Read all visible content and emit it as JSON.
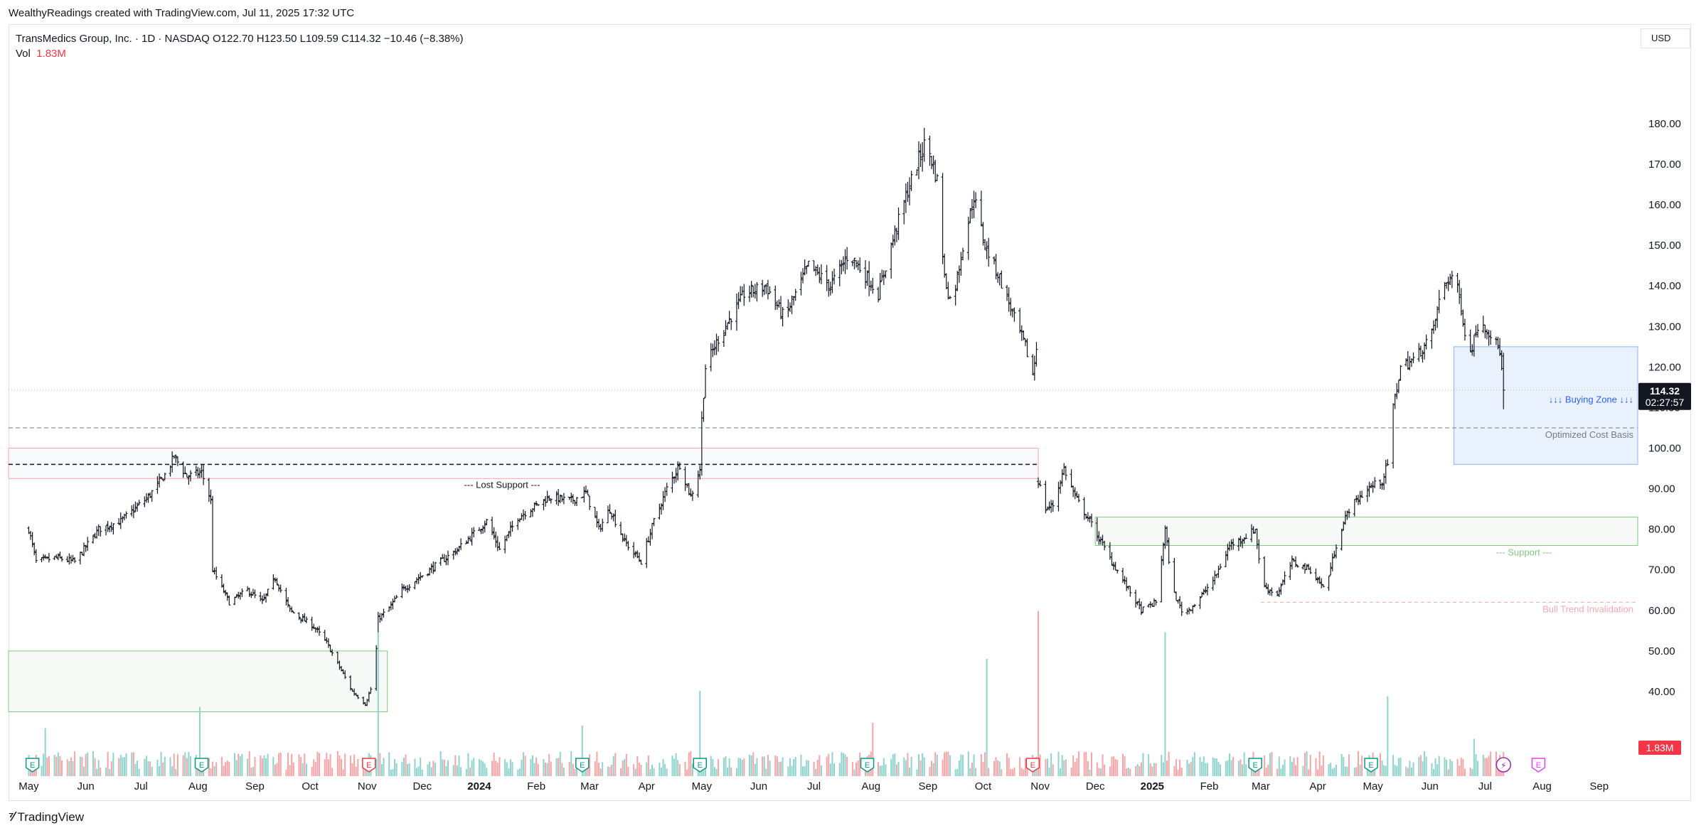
{
  "header": {
    "credit": "WealthyReadings created with TradingView.com, Jul 11, 2025 17:32 UTC",
    "legend_line1": "TransMedics Group, Inc. · 1D · NASDAQ  O122.70  H123.50  L109.59  C114.32  −10.46 (−8.38%)",
    "vol_label": "Vol",
    "vol_value": "1.83M",
    "currency": "USD"
  },
  "footer": {
    "brand": "TradingView"
  },
  "colors": {
    "up_volume": "#26a69a",
    "down_volume": "#ef5350",
    "buying_zone": "#2962ff",
    "support": "#4caf50",
    "invalidation": "#f23645"
  },
  "chart_data": {
    "type": "ohlc",
    "symbol": "TransMedics Group, Inc.",
    "interval": "1D",
    "exchange": "NASDAQ",
    "last": {
      "open": 122.7,
      "high": 123.5,
      "low": 109.59,
      "close": 114.32,
      "change": -10.46,
      "change_pct": -8.38
    },
    "ylim": [
      30,
      187
    ],
    "y_ticks": [
      40,
      50,
      60,
      70,
      80,
      90,
      100,
      110,
      120,
      130,
      140,
      150,
      160,
      170,
      180
    ],
    "y_tick_labels": [
      "40.00",
      "50.00",
      "60.00",
      "70.00",
      "80.00",
      "90.00",
      "100.00",
      "110.00",
      "120.00",
      "130.00",
      "140.00",
      "150.00",
      "160.00",
      "170.00",
      "180.00"
    ],
    "x_ticks": [
      {
        "label": "May",
        "date": "2023-05-01"
      },
      {
        "label": "Jun",
        "date": "2023-06-01"
      },
      {
        "label": "Jul",
        "date": "2023-07-01"
      },
      {
        "label": "Aug",
        "date": "2023-08-01"
      },
      {
        "label": "Sep",
        "date": "2023-09-01"
      },
      {
        "label": "Oct",
        "date": "2023-10-01"
      },
      {
        "label": "Nov",
        "date": "2023-11-01"
      },
      {
        "label": "Dec",
        "date": "2023-12-01"
      },
      {
        "label": "2024",
        "date": "2024-01-01",
        "bold": true
      },
      {
        "label": "Feb",
        "date": "2024-02-01"
      },
      {
        "label": "Mar",
        "date": "2024-03-01"
      },
      {
        "label": "Apr",
        "date": "2024-04-01"
      },
      {
        "label": "May",
        "date": "2024-05-01"
      },
      {
        "label": "Jun",
        "date": "2024-06-01"
      },
      {
        "label": "Jul",
        "date": "2024-07-01"
      },
      {
        "label": "Aug",
        "date": "2024-08-01"
      },
      {
        "label": "Sep",
        "date": "2024-09-01"
      },
      {
        "label": "Oct",
        "date": "2024-10-01"
      },
      {
        "label": "Nov",
        "date": "2024-11-01"
      },
      {
        "label": "Dec",
        "date": "2024-12-01"
      },
      {
        "label": "2025",
        "date": "2025-01-01",
        "bold": true
      },
      {
        "label": "Feb",
        "date": "2025-02-01"
      },
      {
        "label": "Mar",
        "date": "2025-03-01"
      },
      {
        "label": "Apr",
        "date": "2025-04-01"
      },
      {
        "label": "May",
        "date": "2025-05-01"
      },
      {
        "label": "Jun",
        "date": "2025-06-01"
      },
      {
        "label": "Jul",
        "date": "2025-07-01"
      },
      {
        "label": "Aug",
        "date": "2025-08-01"
      },
      {
        "label": "Sep",
        "date": "2025-09-01"
      }
    ],
    "price_path": [
      [
        "2023-05-01",
        80
      ],
      [
        "2023-05-05",
        72
      ],
      [
        "2023-05-16",
        73
      ],
      [
        "2023-05-26",
        72
      ],
      [
        "2023-06-08",
        80
      ],
      [
        "2023-06-20",
        82
      ],
      [
        "2023-07-05",
        88
      ],
      [
        "2023-07-15",
        94
      ],
      [
        "2023-07-19",
        98
      ],
      [
        "2023-07-26",
        93
      ],
      [
        "2023-08-03",
        94
      ],
      [
        "2023-08-08",
        87
      ],
      [
        "2023-08-09",
        70
      ],
      [
        "2023-08-18",
        62
      ],
      [
        "2023-08-28",
        65
      ],
      [
        "2023-09-05",
        62
      ],
      [
        "2023-09-12",
        68
      ],
      [
        "2023-09-20",
        60
      ],
      [
        "2023-10-03",
        56
      ],
      [
        "2023-10-10",
        52
      ],
      [
        "2023-10-17",
        46
      ],
      [
        "2023-10-24",
        40
      ],
      [
        "2023-10-31",
        37
      ],
      [
        "2023-11-05",
        43
      ],
      [
        "2023-11-07",
        58
      ],
      [
        "2023-11-12",
        60
      ],
      [
        "2023-11-20",
        65
      ],
      [
        "2023-12-05",
        70
      ],
      [
        "2023-12-20",
        75
      ],
      [
        "2024-01-05",
        82
      ],
      [
        "2024-01-12",
        75
      ],
      [
        "2024-01-22",
        83
      ],
      [
        "2024-02-08",
        88
      ],
      [
        "2024-02-20",
        87
      ],
      [
        "2024-02-28",
        89
      ],
      [
        "2024-03-06",
        80
      ],
      [
        "2024-03-12",
        85
      ],
      [
        "2024-03-20",
        77
      ],
      [
        "2024-03-29",
        72
      ],
      [
        "2024-04-05",
        82
      ],
      [
        "2024-04-12",
        90
      ],
      [
        "2024-04-19",
        96
      ],
      [
        "2024-04-25",
        88
      ],
      [
        "2024-04-30",
        95
      ],
      [
        "2024-05-01",
        107
      ],
      [
        "2024-05-03",
        120
      ],
      [
        "2024-05-10",
        127
      ],
      [
        "2024-05-24",
        138
      ],
      [
        "2024-06-05",
        140
      ],
      [
        "2024-06-15",
        132
      ],
      [
        "2024-06-28",
        145
      ],
      [
        "2024-07-10",
        140
      ],
      [
        "2024-07-20",
        148
      ],
      [
        "2024-07-30",
        142
      ],
      [
        "2024-08-05",
        138
      ],
      [
        "2024-08-12",
        150
      ],
      [
        "2024-08-20",
        162
      ],
      [
        "2024-08-26",
        170
      ],
      [
        "2024-08-31",
        176
      ],
      [
        "2024-09-06",
        166
      ],
      [
        "2024-09-10",
        142
      ],
      [
        "2024-09-14",
        135
      ],
      [
        "2024-09-20",
        150
      ],
      [
        "2024-09-26",
        162
      ],
      [
        "2024-10-02",
        150
      ],
      [
        "2024-10-10",
        142
      ],
      [
        "2024-10-18",
        132
      ],
      [
        "2024-10-24",
        125
      ],
      [
        "2024-10-28",
        118
      ],
      [
        "2024-10-31",
        128
      ],
      [
        "2024-10-31",
        92
      ],
      [
        "2024-11-04",
        85
      ],
      [
        "2024-11-08",
        86
      ],
      [
        "2024-11-14",
        95
      ],
      [
        "2024-11-20",
        88
      ],
      [
        "2024-11-28",
        82
      ],
      [
        "2024-12-04",
        77
      ],
      [
        "2024-12-10",
        72
      ],
      [
        "2024-12-18",
        66
      ],
      [
        "2024-12-26",
        60
      ],
      [
        "2025-01-03",
        62
      ],
      [
        "2025-01-08",
        80
      ],
      [
        "2025-01-12",
        65
      ],
      [
        "2025-01-18",
        59
      ],
      [
        "2025-01-25",
        62
      ],
      [
        "2025-02-04",
        68
      ],
      [
        "2025-02-12",
        76
      ],
      [
        "2025-02-20",
        78
      ],
      [
        "2025-02-26",
        80
      ],
      [
        "2025-03-02",
        66
      ],
      [
        "2025-03-10",
        64
      ],
      [
        "2025-03-18",
        72
      ],
      [
        "2025-03-28",
        70
      ],
      [
        "2025-04-05",
        65
      ],
      [
        "2025-04-12",
        78
      ],
      [
        "2025-04-18",
        85
      ],
      [
        "2025-04-28",
        90
      ],
      [
        "2025-05-06",
        92
      ],
      [
        "2025-05-09",
        96
      ],
      [
        "2025-05-12",
        110
      ],
      [
        "2025-05-16",
        120
      ],
      [
        "2025-05-24",
        122
      ],
      [
        "2025-06-02",
        128
      ],
      [
        "2025-06-08",
        140
      ],
      [
        "2025-06-14",
        143
      ],
      [
        "2025-06-18",
        135
      ],
      [
        "2025-06-22",
        122
      ],
      [
        "2025-06-28",
        132
      ],
      [
        "2025-07-04",
        128
      ],
      [
        "2025-07-09",
        124
      ],
      [
        "2025-07-11",
        114.32
      ]
    ],
    "volume_spikes": [
      [
        "2023-05-10",
        0.9
      ],
      [
        "2023-08-02",
        1.3
      ],
      [
        "2023-11-07",
        2.7
      ],
      [
        "2024-02-26",
        0.95
      ],
      [
        "2024-04-30",
        1.6
      ],
      [
        "2024-08-02",
        1.0
      ],
      [
        "2024-10-03",
        2.2
      ],
      [
        "2024-10-31",
        3.1
      ],
      [
        "2024-12-01",
        1.5
      ],
      [
        "2025-01-08",
        2.7
      ],
      [
        "2025-01-12",
        2.0
      ],
      [
        "2025-05-09",
        1.5
      ],
      [
        "2025-06-25",
        0.7
      ]
    ],
    "vol_max_millions": 3.2,
    "earnings_markers": [
      {
        "date": "2023-05-03",
        "type": "E",
        "beat": true
      },
      {
        "date": "2023-08-03",
        "type": "E",
        "beat": true
      },
      {
        "date": "2023-11-02",
        "type": "E",
        "beat": false
      },
      {
        "date": "2024-02-26",
        "type": "E",
        "beat": true
      },
      {
        "date": "2024-04-30",
        "type": "E",
        "beat": true
      },
      {
        "date": "2024-07-30",
        "type": "E",
        "beat": true
      },
      {
        "date": "2024-10-28",
        "type": "E",
        "beat": false
      },
      {
        "date": "2025-02-26",
        "type": "E",
        "beat": true
      },
      {
        "date": "2025-04-30",
        "type": "E",
        "beat": true
      },
      {
        "date": "2025-07-11",
        "type": "flash"
      },
      {
        "date": "2025-07-30",
        "type": "E",
        "upcoming": true
      }
    ],
    "annotations": {
      "buying_zone": {
        "label": "↓↓↓ Buying Zone ↓↓↓",
        "from": "2025-06-14",
        "top": 125,
        "bottom": 96
      },
      "optimized_cost_basis": {
        "label": "Optimized Cost Basis",
        "price": 105
      },
      "lost_support": {
        "label": "--- Lost Support ---",
        "from": "2023-04-20",
        "to": "2024-10-31",
        "top": 100,
        "bottom": 92.5,
        "line": 96
      },
      "support": {
        "label": "--- Support ---",
        "from": "2024-12-01",
        "top": 83,
        "bottom": 76
      },
      "bull_trend_invalidation": {
        "label": "Bull Trend Invalidation",
        "from": "2025-03-01",
        "price": 62
      },
      "old_base": {
        "from": "2023-04-20",
        "to": "2023-11-12",
        "top": 50,
        "bottom": 35
      }
    },
    "last_price_tag": {
      "price": "114.32",
      "countdown": "02:27:57"
    },
    "volume_tag": "1.83M"
  }
}
